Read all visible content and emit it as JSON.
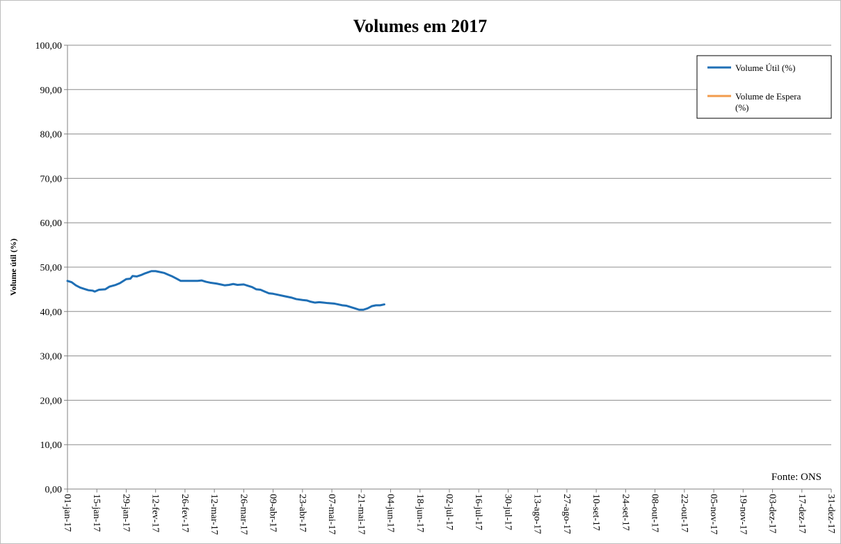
{
  "chart_data": {
    "type": "line",
    "title": "Volumes em 2017",
    "ylabel": "Volume útil (%)",
    "xlabel": "",
    "ylim": [
      0,
      100
    ],
    "yticks": [
      "0,00",
      "10,00",
      "20,00",
      "30,00",
      "40,00",
      "50,00",
      "60,00",
      "70,00",
      "80,00",
      "90,00",
      "100,00"
    ],
    "xlim": [
      "2017-01-01",
      "2017-12-31"
    ],
    "xticks": [
      {
        "date": "2017-01-01",
        "label": "01-jan-17"
      },
      {
        "date": "2017-01-15",
        "label": "15-jan-17"
      },
      {
        "date": "2017-01-29",
        "label": "29-jan-17"
      },
      {
        "date": "2017-02-12",
        "label": "12-fev-17"
      },
      {
        "date": "2017-02-26",
        "label": "26-fev-17"
      },
      {
        "date": "2017-03-12",
        "label": "12-mar-17"
      },
      {
        "date": "2017-03-26",
        "label": "26-mar-17"
      },
      {
        "date": "2017-04-09",
        "label": "09-abr-17"
      },
      {
        "date": "2017-04-23",
        "label": "23-abr-17"
      },
      {
        "date": "2017-05-07",
        "label": "07-mai-17"
      },
      {
        "date": "2017-05-21",
        "label": "21-mai-17"
      },
      {
        "date": "2017-06-04",
        "label": "04-jun-17"
      },
      {
        "date": "2017-06-18",
        "label": "18-jun-17"
      },
      {
        "date": "2017-07-02",
        "label": "02-jul-17"
      },
      {
        "date": "2017-07-16",
        "label": "16-jul-17"
      },
      {
        "date": "2017-07-30",
        "label": "30-jul-17"
      },
      {
        "date": "2017-08-13",
        "label": "13-ago-17"
      },
      {
        "date": "2017-08-27",
        "label": "27-ago-17"
      },
      {
        "date": "2017-09-10",
        "label": "10-set-17"
      },
      {
        "date": "2017-09-24",
        "label": "24-set-17"
      },
      {
        "date": "2017-10-08",
        "label": "08-out-17"
      },
      {
        "date": "2017-10-22",
        "label": "22-out-17"
      },
      {
        "date": "2017-11-05",
        "label": "05-nov-17"
      },
      {
        "date": "2017-11-19",
        "label": "19-nov-17"
      },
      {
        "date": "2017-12-03",
        "label": "03-dez-17"
      },
      {
        "date": "2017-12-17",
        "label": "17-dez-17"
      },
      {
        "date": "2017-12-31",
        "label": "31-dez-17"
      }
    ],
    "grid": {
      "horizontal": true,
      "vertical": false
    },
    "legend_position": "top-right",
    "series": [
      {
        "name": "Volume Útil (%)",
        "color": "#1f6fb5",
        "points": [
          {
            "x": "2017-01-01",
            "y": 46.9
          },
          {
            "x": "2017-01-03",
            "y": 46.6
          },
          {
            "x": "2017-01-05",
            "y": 45.9
          },
          {
            "x": "2017-01-07",
            "y": 45.4
          },
          {
            "x": "2017-01-09",
            "y": 45.1
          },
          {
            "x": "2017-01-11",
            "y": 44.8
          },
          {
            "x": "2017-01-13",
            "y": 44.7
          },
          {
            "x": "2017-01-14",
            "y": 44.5
          },
          {
            "x": "2017-01-16",
            "y": 44.9
          },
          {
            "x": "2017-01-19",
            "y": 45.0
          },
          {
            "x": "2017-01-21",
            "y": 45.6
          },
          {
            "x": "2017-01-24",
            "y": 46.0
          },
          {
            "x": "2017-01-26",
            "y": 46.4
          },
          {
            "x": "2017-01-29",
            "y": 47.3
          },
          {
            "x": "2017-01-31",
            "y": 47.4
          },
          {
            "x": "2017-02-01",
            "y": 48.0
          },
          {
            "x": "2017-02-03",
            "y": 47.9
          },
          {
            "x": "2017-02-05",
            "y": 48.2
          },
          {
            "x": "2017-02-07",
            "y": 48.6
          },
          {
            "x": "2017-02-10",
            "y": 49.1
          },
          {
            "x": "2017-02-12",
            "y": 49.1
          },
          {
            "x": "2017-02-14",
            "y": 48.9
          },
          {
            "x": "2017-02-16",
            "y": 48.7
          },
          {
            "x": "2017-02-18",
            "y": 48.3
          },
          {
            "x": "2017-02-20",
            "y": 47.9
          },
          {
            "x": "2017-02-22",
            "y": 47.4
          },
          {
            "x": "2017-02-24",
            "y": 46.9
          },
          {
            "x": "2017-02-26",
            "y": 46.9
          },
          {
            "x": "2017-03-01",
            "y": 46.9
          },
          {
            "x": "2017-03-04",
            "y": 46.9
          },
          {
            "x": "2017-03-06",
            "y": 47.0
          },
          {
            "x": "2017-03-08",
            "y": 46.7
          },
          {
            "x": "2017-03-10",
            "y": 46.5
          },
          {
            "x": "2017-03-13",
            "y": 46.3
          },
          {
            "x": "2017-03-15",
            "y": 46.1
          },
          {
            "x": "2017-03-17",
            "y": 45.9
          },
          {
            "x": "2017-03-19",
            "y": 46.0
          },
          {
            "x": "2017-03-21",
            "y": 46.2
          },
          {
            "x": "2017-03-23",
            "y": 46.0
          },
          {
            "x": "2017-03-26",
            "y": 46.1
          },
          {
            "x": "2017-03-28",
            "y": 45.8
          },
          {
            "x": "2017-03-30",
            "y": 45.5
          },
          {
            "x": "2017-04-01",
            "y": 45.0
          },
          {
            "x": "2017-04-03",
            "y": 44.9
          },
          {
            "x": "2017-04-05",
            "y": 44.5
          },
          {
            "x": "2017-04-07",
            "y": 44.1
          },
          {
            "x": "2017-04-09",
            "y": 44.0
          },
          {
            "x": "2017-04-11",
            "y": 43.8
          },
          {
            "x": "2017-04-14",
            "y": 43.5
          },
          {
            "x": "2017-04-16",
            "y": 43.3
          },
          {
            "x": "2017-04-18",
            "y": 43.1
          },
          {
            "x": "2017-04-20",
            "y": 42.8
          },
          {
            "x": "2017-04-23",
            "y": 42.6
          },
          {
            "x": "2017-04-25",
            "y": 42.5
          },
          {
            "x": "2017-04-27",
            "y": 42.2
          },
          {
            "x": "2017-04-29",
            "y": 42.0
          },
          {
            "x": "2017-05-01",
            "y": 42.1
          },
          {
            "x": "2017-05-03",
            "y": 42.0
          },
          {
            "x": "2017-05-05",
            "y": 41.9
          },
          {
            "x": "2017-05-08",
            "y": 41.8
          },
          {
            "x": "2017-05-10",
            "y": 41.6
          },
          {
            "x": "2017-05-12",
            "y": 41.4
          },
          {
            "x": "2017-05-14",
            "y": 41.3
          },
          {
            "x": "2017-05-16",
            "y": 41.0
          },
          {
            "x": "2017-05-18",
            "y": 40.7
          },
          {
            "x": "2017-05-20",
            "y": 40.4
          },
          {
            "x": "2017-05-22",
            "y": 40.4
          },
          {
            "x": "2017-05-24",
            "y": 40.7
          },
          {
            "x": "2017-05-26",
            "y": 41.2
          },
          {
            "x": "2017-05-28",
            "y": 41.4
          },
          {
            "x": "2017-05-30",
            "y": 41.4
          },
          {
            "x": "2017-06-01",
            "y": 41.6
          }
        ]
      },
      {
        "name": "Volume de Espera (%)",
        "color": "#f29b4c",
        "points": []
      }
    ],
    "annotations": [
      "Fonte: ONS"
    ]
  }
}
